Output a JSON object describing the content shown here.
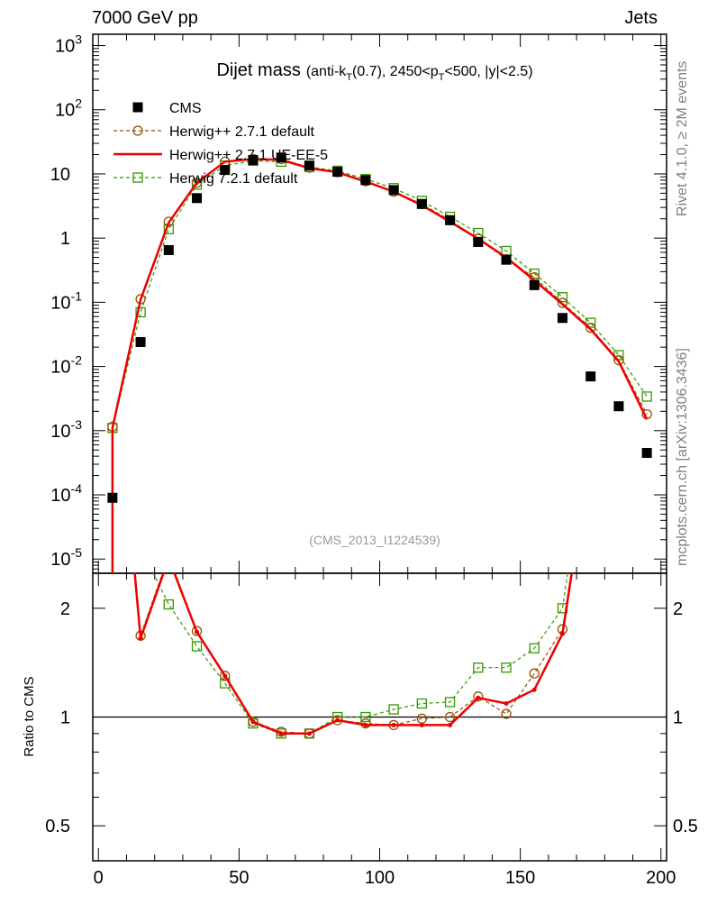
{
  "header": {
    "left": "7000 GeV pp",
    "right": "Jets"
  },
  "side_labels": {
    "rivet": "Rivet 4.1.0, ≥ 2M events",
    "mcplots": "mcplots.cern.ch [arXiv:1306.3436]"
  },
  "chart_data": {
    "type": "scatter",
    "title": "Dijet mass",
    "subtitle_parts": {
      "a": "(anti-k",
      "a_sub": "T",
      "b": "(0.7), 2450<p",
      "b_sub": "T",
      "c": "<500, |y|<2.5)"
    },
    "analysis_id": "(CMS_2013_I1224539)",
    "x": [
      5,
      15,
      25,
      35,
      45,
      55,
      65,
      75,
      85,
      95,
      105,
      115,
      125,
      135,
      145,
      155,
      165,
      175,
      185,
      195
    ],
    "xlim": [
      -2,
      202
    ],
    "xticks": [
      0,
      50,
      100,
      150,
      200
    ],
    "main_panel": {
      "yscale": "log",
      "ylim": [
        6e-06,
        1500
      ],
      "ytick_labels": [
        "10^-5",
        "10^-4",
        "10^-3",
        "10^-2",
        "10^-1",
        "1",
        "10",
        "10^2",
        "10^3"
      ]
    },
    "ratio_panel": {
      "ylabel": "Ratio to CMS",
      "yscale": "log",
      "ylim": [
        0.4,
        2.5
      ],
      "ytick_labels": [
        "0.5",
        "1",
        "2"
      ]
    },
    "series": [
      {
        "name": "CMS",
        "style": "data",
        "color": "#000000",
        "values": [
          9e-05,
          0.024,
          0.65,
          4.2,
          11.5,
          16.5,
          18.0,
          13.5,
          10.8,
          8.0,
          5.6,
          3.4,
          1.9,
          0.87,
          0.46,
          0.185,
          0.057,
          0.007,
          0.0024,
          0.00045
        ]
      },
      {
        "name": "Herwig++ 2.7.1 default",
        "style": "circle-dashed",
        "color": "#9a4d00",
        "values": [
          0.00115,
          0.112,
          1.8,
          7.3,
          15.5,
          17.0,
          17.0,
          12.5,
          10.6,
          7.7,
          5.3,
          3.4,
          1.9,
          0.98,
          0.47,
          0.245,
          0.098,
          0.04,
          0.0125,
          0.0018
        ],
        "ratio": [
          12.8,
          1.68,
          2.8,
          1.73,
          1.3,
          0.97,
          0.91,
          0.9,
          0.98,
          0.96,
          0.95,
          0.99,
          1.0,
          1.14,
          1.02,
          1.32,
          1.75,
          5.7,
          5.2,
          4.0
        ]
      },
      {
        "name": "Herwig++ 2.7.1 UE-EE-5",
        "style": "solid",
        "color": "#ee0000",
        "values": [
          0.0011,
          0.11,
          1.75,
          7.3,
          15.5,
          17.0,
          16.6,
          12.3,
          10.6,
          7.6,
          5.3,
          3.25,
          1.8,
          0.98,
          0.5,
          0.22,
          0.093,
          0.038,
          0.012,
          0.0015
        ],
        "ratio": [
          12.2,
          1.65,
          2.75,
          1.72,
          1.3,
          0.97,
          0.9,
          0.9,
          0.98,
          0.95,
          0.95,
          0.95,
          0.95,
          1.13,
          1.09,
          1.19,
          1.7,
          5.5,
          5.0,
          3.4
        ]
      },
      {
        "name": "Herwig 7.2.1 default",
        "style": "square-dashed",
        "color": "#339900",
        "values": [
          0.0011,
          0.07,
          1.38,
          6.8,
          13.5,
          16.0,
          15.5,
          12.8,
          11.2,
          8.3,
          6.0,
          3.8,
          2.15,
          1.2,
          0.63,
          0.28,
          0.12,
          0.048,
          0.015,
          0.0034
        ],
        "ratio": [
          12.2,
          2.95,
          2.05,
          1.57,
          1.24,
          0.96,
          0.9,
          0.9,
          1.0,
          1.0,
          1.05,
          1.09,
          1.1,
          1.37,
          1.37,
          1.55,
          2.0,
          6.8,
          6.1,
          7.5
        ]
      }
    ]
  }
}
